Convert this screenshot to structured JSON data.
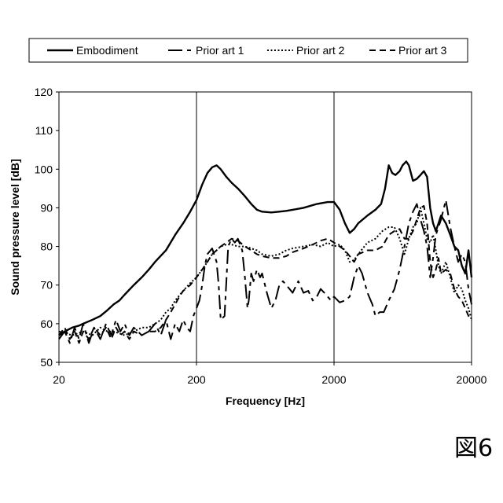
{
  "figure_label": "図6",
  "chart_data": {
    "type": "line",
    "xscale": "log",
    "xlim": [
      20,
      20000
    ],
    "ylim": [
      50,
      120
    ],
    "xticks": [
      20,
      200,
      2000,
      20000
    ],
    "yticks": [
      50,
      60,
      70,
      80,
      90,
      100,
      110,
      120
    ],
    "xlabel": "Frequency [Hz]",
    "ylabel": "Sound pressure level [dB]",
    "grid": "vertical",
    "legend_position": "top",
    "series": [
      {
        "name": "Embodiment",
        "style": "solid",
        "points": [
          [
            20,
            57
          ],
          [
            22,
            58
          ],
          [
            25,
            59
          ],
          [
            28,
            59.5
          ],
          [
            30,
            60
          ],
          [
            35,
            61
          ],
          [
            40,
            62
          ],
          [
            45,
            63.5
          ],
          [
            50,
            65
          ],
          [
            55,
            66
          ],
          [
            60,
            67.5
          ],
          [
            70,
            70
          ],
          [
            80,
            72
          ],
          [
            90,
            74
          ],
          [
            100,
            76
          ],
          [
            120,
            79
          ],
          [
            140,
            83
          ],
          [
            160,
            86
          ],
          [
            180,
            89
          ],
          [
            200,
            92
          ],
          [
            220,
            96
          ],
          [
            240,
            99
          ],
          [
            260,
            100.5
          ],
          [
            280,
            101
          ],
          [
            300,
            100
          ],
          [
            330,
            98
          ],
          [
            360,
            96.5
          ],
          [
            400,
            95
          ],
          [
            450,
            93
          ],
          [
            500,
            91
          ],
          [
            550,
            89.5
          ],
          [
            600,
            89
          ],
          [
            700,
            88.8
          ],
          [
            800,
            89
          ],
          [
            900,
            89.2
          ],
          [
            1000,
            89.5
          ],
          [
            1200,
            90
          ],
          [
            1500,
            91
          ],
          [
            1800,
            91.5
          ],
          [
            2000,
            91.5
          ],
          [
            2200,
            89.5
          ],
          [
            2400,
            86
          ],
          [
            2600,
            83.5
          ],
          [
            2800,
            84.5
          ],
          [
            3000,
            86
          ],
          [
            3500,
            88
          ],
          [
            4000,
            89.5
          ],
          [
            4400,
            91
          ],
          [
            4700,
            95
          ],
          [
            5000,
            101
          ],
          [
            5300,
            99
          ],
          [
            5600,
            98.5
          ],
          [
            6000,
            99.5
          ],
          [
            6300,
            101
          ],
          [
            6700,
            102
          ],
          [
            7000,
            101
          ],
          [
            7500,
            97
          ],
          [
            8000,
            97.5
          ],
          [
            8500,
            98.5
          ],
          [
            9000,
            99.5
          ],
          [
            9500,
            98
          ],
          [
            10000,
            90
          ],
          [
            10500,
            86
          ],
          [
            11000,
            84
          ],
          [
            11500,
            86
          ],
          [
            12000,
            88
          ],
          [
            13000,
            86
          ],
          [
            14000,
            83
          ],
          [
            15000,
            80
          ],
          [
            16000,
            79
          ],
          [
            17000,
            75
          ],
          [
            18000,
            73
          ],
          [
            19000,
            79
          ],
          [
            20000,
            72
          ]
        ]
      },
      {
        "name": "Prior art 1",
        "style": "longdash",
        "points": [
          [
            20,
            56
          ],
          [
            22,
            58
          ],
          [
            24,
            55
          ],
          [
            26,
            59
          ],
          [
            28,
            56
          ],
          [
            30,
            60
          ],
          [
            33,
            55
          ],
          [
            36,
            59
          ],
          [
            40,
            56
          ],
          [
            44,
            60
          ],
          [
            48,
            57
          ],
          [
            52,
            61
          ],
          [
            56,
            58
          ],
          [
            60,
            60
          ],
          [
            65,
            57
          ],
          [
            70,
            59
          ],
          [
            80,
            57
          ],
          [
            90,
            58
          ],
          [
            100,
            60
          ],
          [
            110,
            57
          ],
          [
            120,
            61
          ],
          [
            130,
            56
          ],
          [
            140,
            60
          ],
          [
            150,
            58
          ],
          [
            160,
            61
          ],
          [
            170,
            59
          ],
          [
            180,
            58
          ],
          [
            190,
            62
          ],
          [
            200,
            64
          ],
          [
            210,
            66
          ],
          [
            220,
            70
          ],
          [
            230,
            75
          ],
          [
            240,
            78
          ],
          [
            260,
            79.5
          ],
          [
            280,
            76
          ],
          [
            290,
            70
          ],
          [
            300,
            61
          ],
          [
            320,
            62
          ],
          [
            340,
            80
          ],
          [
            360,
            82
          ],
          [
            380,
            81
          ],
          [
            400,
            82
          ],
          [
            430,
            79
          ],
          [
            450,
            72
          ],
          [
            470,
            64
          ],
          [
            480,
            66
          ],
          [
            500,
            73
          ],
          [
            520,
            71
          ],
          [
            550,
            74
          ],
          [
            580,
            72
          ],
          [
            600,
            73
          ],
          [
            650,
            68
          ],
          [
            700,
            64
          ],
          [
            750,
            66
          ],
          [
            800,
            70
          ],
          [
            850,
            71
          ],
          [
            900,
            70
          ],
          [
            1000,
            68
          ],
          [
            1100,
            71
          ],
          [
            1200,
            68
          ],
          [
            1300,
            68.5
          ],
          [
            1400,
            66
          ],
          [
            1500,
            67
          ],
          [
            1600,
            69
          ],
          [
            1700,
            68
          ],
          [
            1800,
            67
          ],
          [
            1900,
            66
          ],
          [
            2000,
            67
          ],
          [
            2200,
            65.5
          ],
          [
            2400,
            66
          ],
          [
            2600,
            67
          ],
          [
            2800,
            72
          ],
          [
            3000,
            75
          ],
          [
            3200,
            73
          ],
          [
            3500,
            68
          ],
          [
            3800,
            65
          ],
          [
            4000,
            62
          ],
          [
            4300,
            63
          ],
          [
            4600,
            63
          ],
          [
            5000,
            66
          ],
          [
            5500,
            69
          ],
          [
            6000,
            74
          ],
          [
            6500,
            80
          ],
          [
            7000,
            86
          ],
          [
            7500,
            89
          ],
          [
            8000,
            91
          ],
          [
            8500,
            87
          ],
          [
            9000,
            84
          ],
          [
            9500,
            80
          ],
          [
            10000,
            72
          ],
          [
            10500,
            77
          ],
          [
            11000,
            83
          ],
          [
            11500,
            85
          ],
          [
            12000,
            87
          ],
          [
            13000,
            92
          ],
          [
            14000,
            85
          ],
          [
            15000,
            80
          ],
          [
            16000,
            76
          ],
          [
            17000,
            78
          ],
          [
            18000,
            76
          ],
          [
            19000,
            69
          ],
          [
            20000,
            65
          ]
        ]
      },
      {
        "name": "Prior art 2",
        "style": "dotted",
        "points": [
          [
            20,
            58
          ],
          [
            25,
            57
          ],
          [
            30,
            58
          ],
          [
            35,
            57
          ],
          [
            40,
            59
          ],
          [
            45,
            58
          ],
          [
            50,
            58
          ],
          [
            60,
            57
          ],
          [
            70,
            58
          ],
          [
            80,
            59
          ],
          [
            90,
            59
          ],
          [
            100,
            60
          ],
          [
            110,
            61
          ],
          [
            120,
            63
          ],
          [
            130,
            64
          ],
          [
            140,
            66
          ],
          [
            160,
            68.5
          ],
          [
            180,
            70.5
          ],
          [
            200,
            72
          ],
          [
            220,
            74
          ],
          [
            240,
            76
          ],
          [
            260,
            78
          ],
          [
            280,
            79
          ],
          [
            300,
            80
          ],
          [
            330,
            80.5
          ],
          [
            360,
            80.5
          ],
          [
            400,
            80
          ],
          [
            450,
            80
          ],
          [
            500,
            79.5
          ],
          [
            550,
            79
          ],
          [
            600,
            78
          ],
          [
            700,
            77.5
          ],
          [
            800,
            78
          ],
          [
            900,
            79
          ],
          [
            1000,
            79.5
          ],
          [
            1200,
            80
          ],
          [
            1400,
            80.5
          ],
          [
            1600,
            80
          ],
          [
            1800,
            81
          ],
          [
            2000,
            80
          ],
          [
            2200,
            80.5
          ],
          [
            2400,
            79
          ],
          [
            2600,
            76
          ],
          [
            2800,
            76.5
          ],
          [
            3000,
            78
          ],
          [
            3500,
            81
          ],
          [
            4000,
            82
          ],
          [
            4500,
            84
          ],
          [
            5000,
            85
          ],
          [
            5500,
            85
          ],
          [
            6000,
            82
          ],
          [
            6500,
            78
          ],
          [
            7000,
            82
          ],
          [
            7500,
            85
          ],
          [
            8000,
            86
          ],
          [
            8500,
            90
          ],
          [
            9000,
            86
          ],
          [
            9500,
            82
          ],
          [
            10000,
            81
          ],
          [
            10500,
            83
          ],
          [
            11000,
            79
          ],
          [
            11500,
            75
          ],
          [
            12000,
            73
          ],
          [
            13000,
            76
          ],
          [
            14000,
            72
          ],
          [
            15000,
            68
          ],
          [
            16000,
            70
          ],
          [
            17000,
            69
          ],
          [
            18000,
            66
          ],
          [
            19000,
            64
          ],
          [
            20000,
            61
          ]
        ]
      },
      {
        "name": "Prior art 3",
        "style": "dash",
        "points": [
          [
            20,
            57
          ],
          [
            22,
            59
          ],
          [
            24,
            56
          ],
          [
            26,
            58
          ],
          [
            28,
            55
          ],
          [
            30,
            58
          ],
          [
            33,
            56
          ],
          [
            36,
            59
          ],
          [
            40,
            57
          ],
          [
            44,
            59
          ],
          [
            48,
            56
          ],
          [
            52,
            59
          ],
          [
            56,
            57
          ],
          [
            60,
            58
          ],
          [
            65,
            56
          ],
          [
            70,
            58
          ],
          [
            80,
            57
          ],
          [
            90,
            58
          ],
          [
            100,
            58
          ],
          [
            110,
            59
          ],
          [
            120,
            61
          ],
          [
            130,
            63
          ],
          [
            140,
            65
          ],
          [
            150,
            67
          ],
          [
            160,
            68.5
          ],
          [
            180,
            70
          ],
          [
            200,
            72
          ],
          [
            220,
            74
          ],
          [
            240,
            76
          ],
          [
            260,
            78
          ],
          [
            280,
            79
          ],
          [
            300,
            80
          ],
          [
            330,
            81
          ],
          [
            360,
            82
          ],
          [
            400,
            81.5
          ],
          [
            450,
            80
          ],
          [
            500,
            79
          ],
          [
            550,
            78
          ],
          [
            600,
            77.5
          ],
          [
            700,
            77
          ],
          [
            800,
            77
          ],
          [
            900,
            77.5
          ],
          [
            1000,
            78.5
          ],
          [
            1200,
            79.5
          ],
          [
            1400,
            80.5
          ],
          [
            1600,
            81.5
          ],
          [
            1800,
            82
          ],
          [
            2000,
            81
          ],
          [
            2200,
            80
          ],
          [
            2400,
            79
          ],
          [
            2600,
            77.5
          ],
          [
            2800,
            76
          ],
          [
            3000,
            78
          ],
          [
            3500,
            79
          ],
          [
            4000,
            79
          ],
          [
            4500,
            80
          ],
          [
            5000,
            83
          ],
          [
            5500,
            84
          ],
          [
            6000,
            84.5
          ],
          [
            6500,
            82
          ],
          [
            7000,
            82
          ],
          [
            7500,
            84
          ],
          [
            8000,
            87
          ],
          [
            8500,
            90
          ],
          [
            9000,
            90.5
          ],
          [
            9500,
            86
          ],
          [
            10000,
            76
          ],
          [
            10500,
            72
          ],
          [
            11000,
            74
          ],
          [
            11500,
            77
          ],
          [
            12000,
            73
          ],
          [
            13000,
            74
          ],
          [
            14000,
            73
          ],
          [
            15000,
            69
          ],
          [
            16000,
            67
          ],
          [
            17000,
            66
          ],
          [
            18000,
            64
          ],
          [
            19000,
            62
          ],
          [
            20000,
            61
          ]
        ]
      }
    ]
  }
}
